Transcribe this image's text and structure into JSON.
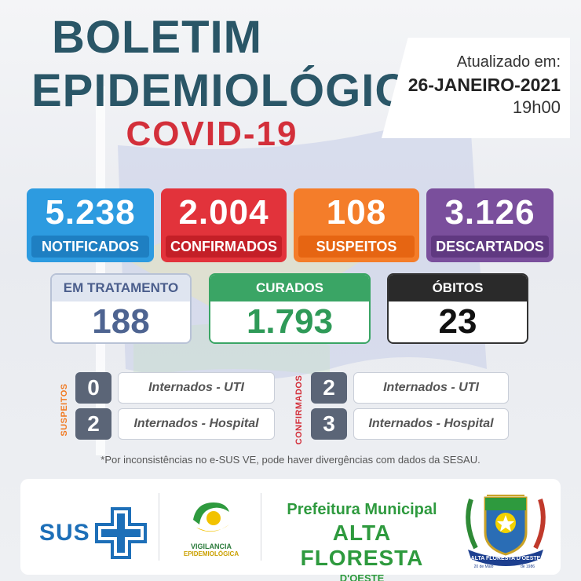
{
  "header": {
    "title_line1": "BOLETIM",
    "title_line2": "EPIDEMIOLÓGICO",
    "title_line3": "COVID-19"
  },
  "update": {
    "label": "Atualizado em:",
    "date": "26-JANEIRO-2021",
    "time": "19h00"
  },
  "stats": [
    {
      "value": "5.238",
      "label": "NOTIFICADOS",
      "color": "#2d9be0"
    },
    {
      "value": "2.004",
      "label": "CONFIRMADOS",
      "color": "#e2333b"
    },
    {
      "value": "108",
      "label": "SUSPEITOS",
      "color": "#f47d2a"
    },
    {
      "value": "3.126",
      "label": "DESCARTADOS",
      "color": "#7a4f9c"
    }
  ],
  "panels": [
    {
      "label": "EM TRATAMENTO",
      "value": "188"
    },
    {
      "label": "CURADOS",
      "value": "1.793"
    },
    {
      "label": "ÓBITOS",
      "value": "23"
    }
  ],
  "suspeitos": {
    "side_label": "SUSPEITOS",
    "rows": [
      {
        "value": "0",
        "label": "Internados - UTI"
      },
      {
        "value": "2",
        "label": "Internados - Hospital"
      }
    ]
  },
  "confirmados": {
    "side_label": "CONFIRMADOS",
    "rows": [
      {
        "value": "2",
        "label": "Internados - UTI"
      },
      {
        "value": "3",
        "label": "Internados - Hospital"
      }
    ]
  },
  "footnote": "*Por inconsistências no e-SUS VE, pode haver divergências com dados da SESAU.",
  "footer": {
    "sus_label": "SUS",
    "vig_line1": "VIGILANCIA",
    "vig_line2": "EPIDEMIOLÓGICA",
    "pref_line1": "Prefeitura Municipal",
    "pref_line2": "ALTA FLORESTA",
    "pref_line3": "D'OESTE",
    "crest_ribbon": "ALTA FLORESTA D'OESTE",
    "crest_date_left": "20 de Maio",
    "crest_date_right": "de 1986"
  }
}
